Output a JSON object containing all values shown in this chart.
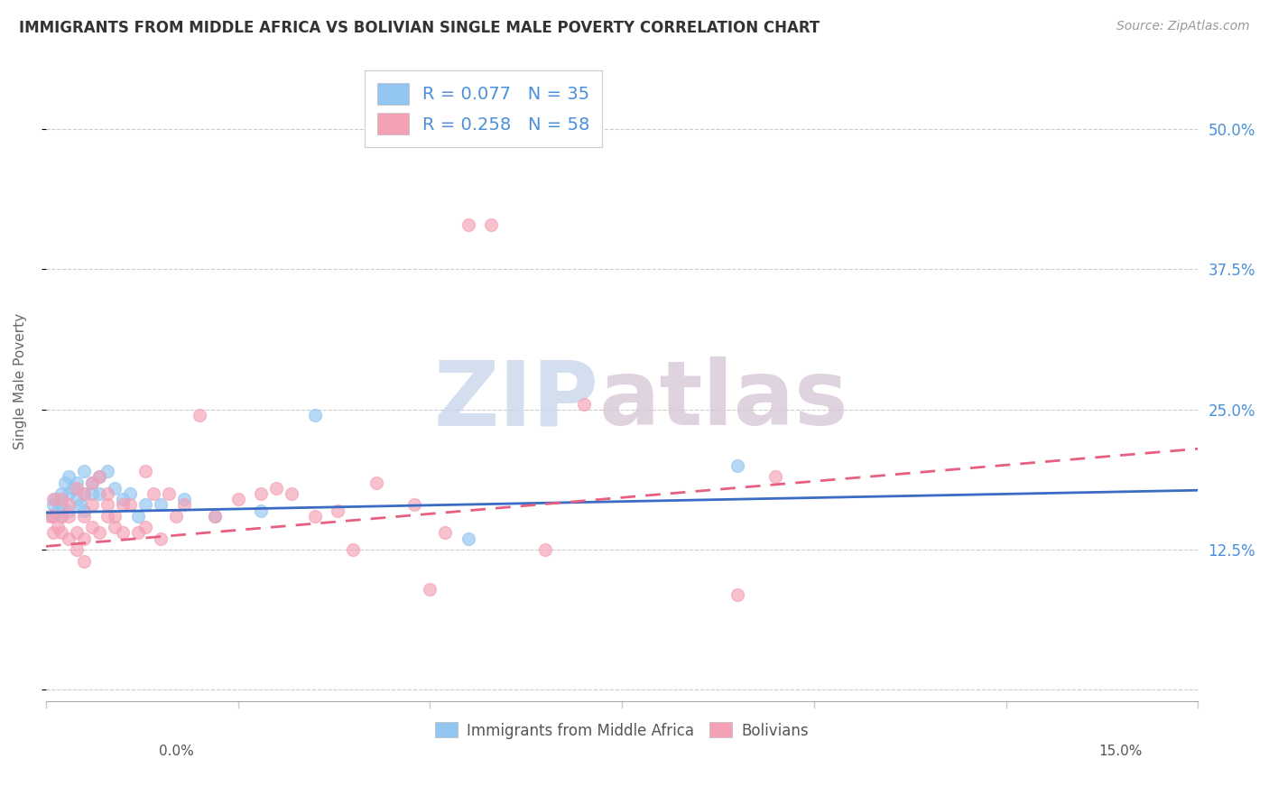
{
  "title": "IMMIGRANTS FROM MIDDLE AFRICA VS BOLIVIAN SINGLE MALE POVERTY CORRELATION CHART",
  "source": "Source: ZipAtlas.com",
  "ylabel": "Single Male Poverty",
  "xlim": [
    0.0,
    0.15
  ],
  "ylim": [
    -0.01,
    0.56
  ],
  "ytick_positions": [
    0.0,
    0.125,
    0.25,
    0.375,
    0.5
  ],
  "ytick_labels": [
    "",
    "12.5%",
    "25.0%",
    "37.5%",
    "50.0%"
  ],
  "legend1_label_r": "R = 0.077",
  "legend1_label_n": "N = 35",
  "legend2_label_r": "R = 0.258",
  "legend2_label_n": "N = 58",
  "color_blue": "#92C5F0",
  "color_pink": "#F4A0B5",
  "trend_blue": "#3B6CC4",
  "trend_pink": "#E86080",
  "watermark_zip": "ZIP",
  "watermark_atlas": "atlas",
  "blue_scatter_x": [
    0.0008,
    0.001,
    0.0012,
    0.0015,
    0.002,
    0.002,
    0.002,
    0.0025,
    0.003,
    0.003,
    0.003,
    0.0035,
    0.004,
    0.004,
    0.0045,
    0.005,
    0.005,
    0.005,
    0.006,
    0.006,
    0.007,
    0.007,
    0.008,
    0.009,
    0.01,
    0.011,
    0.012,
    0.013,
    0.015,
    0.018,
    0.022,
    0.028,
    0.035,
    0.055,
    0.09
  ],
  "blue_scatter_y": [
    0.155,
    0.165,
    0.17,
    0.16,
    0.155,
    0.165,
    0.175,
    0.185,
    0.16,
    0.175,
    0.19,
    0.18,
    0.17,
    0.185,
    0.165,
    0.16,
    0.175,
    0.195,
    0.175,
    0.185,
    0.175,
    0.19,
    0.195,
    0.18,
    0.17,
    0.175,
    0.155,
    0.165,
    0.165,
    0.17,
    0.155,
    0.16,
    0.245,
    0.135,
    0.2
  ],
  "pink_scatter_x": [
    0.0005,
    0.001,
    0.001,
    0.001,
    0.0015,
    0.002,
    0.002,
    0.002,
    0.003,
    0.003,
    0.003,
    0.004,
    0.004,
    0.004,
    0.005,
    0.005,
    0.005,
    0.005,
    0.006,
    0.006,
    0.006,
    0.007,
    0.007,
    0.008,
    0.008,
    0.008,
    0.009,
    0.009,
    0.01,
    0.01,
    0.011,
    0.012,
    0.013,
    0.013,
    0.014,
    0.015,
    0.016,
    0.017,
    0.018,
    0.02,
    0.022,
    0.025,
    0.028,
    0.03,
    0.032,
    0.035,
    0.038,
    0.04,
    0.043,
    0.048,
    0.05,
    0.052,
    0.055,
    0.058,
    0.065,
    0.07,
    0.09,
    0.095
  ],
  "pink_scatter_y": [
    0.155,
    0.14,
    0.155,
    0.17,
    0.145,
    0.14,
    0.155,
    0.17,
    0.135,
    0.155,
    0.165,
    0.125,
    0.14,
    0.18,
    0.115,
    0.135,
    0.155,
    0.175,
    0.145,
    0.165,
    0.185,
    0.14,
    0.19,
    0.155,
    0.165,
    0.175,
    0.145,
    0.155,
    0.14,
    0.165,
    0.165,
    0.14,
    0.145,
    0.195,
    0.175,
    0.135,
    0.175,
    0.155,
    0.165,
    0.245,
    0.155,
    0.17,
    0.175,
    0.18,
    0.175,
    0.155,
    0.16,
    0.125,
    0.185,
    0.165,
    0.09,
    0.14,
    0.415,
    0.415,
    0.125,
    0.255,
    0.085,
    0.19
  ],
  "blue_trend_x": [
    0.0,
    0.15
  ],
  "blue_trend_y": [
    0.158,
    0.178
  ],
  "pink_trend_x": [
    0.0,
    0.15
  ],
  "pink_trend_y": [
    0.128,
    0.215
  ]
}
